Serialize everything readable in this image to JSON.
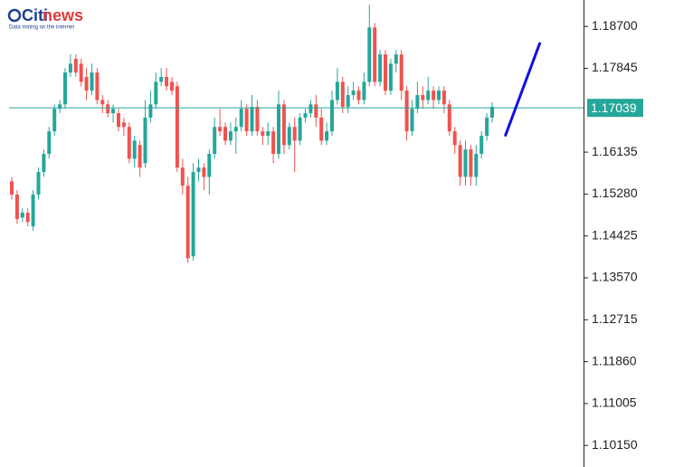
{
  "logo": {
    "brand": "Citi",
    "brand_accent": "news",
    "tagline": "Data mining on the internet"
  },
  "chart_data": {
    "type": "candlestick",
    "ylim": [
      1.0971,
      1.1924
    ],
    "yticks": [
      {
        "value": 1.187,
        "label": "1.18700"
      },
      {
        "value": 1.17845,
        "label": "1.17845"
      },
      {
        "value": 1.16135,
        "label": "1.16135"
      },
      {
        "value": 1.1528,
        "label": "1.15280"
      },
      {
        "value": 1.14425,
        "label": "1.14425"
      },
      {
        "value": 1.1357,
        "label": "1.13570"
      },
      {
        "value": 1.12715,
        "label": "1.12715"
      },
      {
        "value": 1.1186,
        "label": "1.11860"
      },
      {
        "value": 1.11005,
        "label": "1.11005"
      },
      {
        "value": 1.1015,
        "label": "1.10150"
      }
    ],
    "up_color": "#26a69a",
    "down_color": "#ef5350",
    "series": {
      "open": [
        1.1554,
        1.1527,
        1.148,
        1.149,
        1.1462,
        1.1527,
        1.1573,
        1.161,
        1.1656,
        1.1702,
        1.1711,
        1.1776,
        1.1804,
        1.1794,
        1.1767,
        1.1739,
        1.1776,
        1.172,
        1.1711,
        1.1693,
        1.1693,
        1.1674,
        1.1665,
        1.16,
        1.1628,
        1.1591,
        1.1684,
        1.1711,
        1.1757,
        1.1767,
        1.1757,
        1.1748,
        1.1582,
        1.1545,
        1.1401,
        1.1573,
        1.1582,
        1.1563,
        1.161,
        1.1665,
        1.1665,
        1.1637,
        1.1656,
        1.1665,
        1.1702,
        1.1656,
        1.1706,
        1.1656,
        1.1647,
        1.1656,
        1.161,
        1.1711,
        1.1628,
        1.1665,
        1.1637,
        1.1684,
        1.1693,
        1.1711,
        1.1684,
        1.1637,
        1.1656,
        1.172,
        1.1757,
        1.1706,
        1.173,
        1.1739,
        1.172,
        1.1757,
        1.1868,
        1.1757,
        1.1813,
        1.1739,
        1.1794,
        1.1813,
        1.1739,
        1.1656,
        1.1702,
        1.173,
        1.172,
        1.1739,
        1.172,
        1.1739,
        1.1711,
        1.1656,
        1.1628,
        1.1563,
        1.1619,
        1.1563,
        1.161,
        1.1647,
        1.1684
      ],
      "high": [
        1.1563,
        1.1536,
        1.1499,
        1.1499,
        1.1536,
        1.1582,
        1.1619,
        1.1665,
        1.1711,
        1.172,
        1.1785,
        1.1813,
        1.1813,
        1.1804,
        1.1785,
        1.1794,
        1.1785,
        1.173,
        1.172,
        1.1711,
        1.1702,
        1.1684,
        1.1674,
        1.1647,
        1.1637,
        1.172,
        1.1739,
        1.1776,
        1.1785,
        1.1785,
        1.1767,
        1.1757,
        1.16,
        1.1563,
        1.1591,
        1.16,
        1.1591,
        1.1619,
        1.1684,
        1.1702,
        1.1674,
        1.1674,
        1.1684,
        1.172,
        1.1711,
        1.173,
        1.172,
        1.1665,
        1.1674,
        1.1665,
        1.1739,
        1.172,
        1.1674,
        1.1684,
        1.1693,
        1.1702,
        1.172,
        1.173,
        1.1702,
        1.1674,
        1.1739,
        1.1785,
        1.1767,
        1.1748,
        1.1757,
        1.1748,
        1.1776,
        1.1914,
        1.1877,
        1.1822,
        1.1822,
        1.1804,
        1.1822,
        1.1822,
        1.1748,
        1.172,
        1.1757,
        1.1748,
        1.1767,
        1.1748,
        1.1748,
        1.1748,
        1.172,
        1.1665,
        1.1637,
        1.1637,
        1.1628,
        1.1628,
        1.1656,
        1.1693,
        1.1715
      ],
      "low": [
        1.1517,
        1.1467,
        1.1471,
        1.1462,
        1.1453,
        1.1517,
        1.1563,
        1.16,
        1.1647,
        1.1693,
        1.1702,
        1.1767,
        1.1767,
        1.1748,
        1.172,
        1.173,
        1.1711,
        1.1693,
        1.1684,
        1.1674,
        1.1656,
        1.1647,
        1.1591,
        1.1582,
        1.1563,
        1.1582,
        1.1674,
        1.1702,
        1.1748,
        1.1739,
        1.173,
        1.1573,
        1.1527,
        1.1388,
        1.1392,
        1.1554,
        1.1536,
        1.1527,
        1.16,
        1.1647,
        1.1628,
        1.1628,
        1.161,
        1.1656,
        1.1647,
        1.1647,
        1.1647,
        1.1628,
        1.1628,
        1.1591,
        1.16,
        1.161,
        1.1619,
        1.1573,
        1.1628,
        1.1674,
        1.1684,
        1.1665,
        1.1628,
        1.1628,
        1.1647,
        1.1711,
        1.1693,
        1.1693,
        1.172,
        1.1711,
        1.1711,
        1.1748,
        1.1748,
        1.1748,
        1.173,
        1.173,
        1.1776,
        1.172,
        1.1637,
        1.1647,
        1.1693,
        1.1702,
        1.1711,
        1.1702,
        1.1711,
        1.1693,
        1.1647,
        1.161,
        1.1545,
        1.1545,
        1.1545,
        1.1545,
        1.16,
        1.1637,
        1.1674
      ],
      "close": [
        1.1527,
        1.1477,
        1.149,
        1.1471,
        1.1527,
        1.1573,
        1.161,
        1.1656,
        1.1702,
        1.1711,
        1.1776,
        1.1794,
        1.1776,
        1.1757,
        1.1739,
        1.1776,
        1.172,
        1.1711,
        1.1693,
        1.1702,
        1.1665,
        1.1665,
        1.16,
        1.1637,
        1.1582,
        1.1684,
        1.1711,
        1.1757,
        1.1767,
        1.1748,
        1.1739,
        1.1582,
        1.1545,
        1.1397,
        1.1573,
        1.1582,
        1.1563,
        1.161,
        1.1665,
        1.1656,
        1.1637,
        1.1656,
        1.1665,
        1.1702,
        1.1656,
        1.1706,
        1.1656,
        1.1647,
        1.1656,
        1.161,
        1.1711,
        1.1628,
        1.1665,
        1.1637,
        1.1684,
        1.1693,
        1.1711,
        1.1684,
        1.1637,
        1.1656,
        1.172,
        1.1757,
        1.1706,
        1.173,
        1.1739,
        1.172,
        1.1757,
        1.1868,
        1.1757,
        1.1813,
        1.1739,
        1.1794,
        1.1813,
        1.1739,
        1.1656,
        1.1702,
        1.173,
        1.172,
        1.1739,
        1.172,
        1.1739,
        1.1711,
        1.1656,
        1.1628,
        1.1563,
        1.1619,
        1.1563,
        1.161,
        1.1647,
        1.1684,
        1.1706
      ]
    },
    "current_price": {
      "value": 1.17039,
      "label": "1.17039",
      "color": "#26a69a"
    },
    "trendline": {
      "x": [
        92.5,
        98.9
      ],
      "values": [
        1.1648,
        1.1835
      ],
      "color": "#1010e0"
    }
  }
}
